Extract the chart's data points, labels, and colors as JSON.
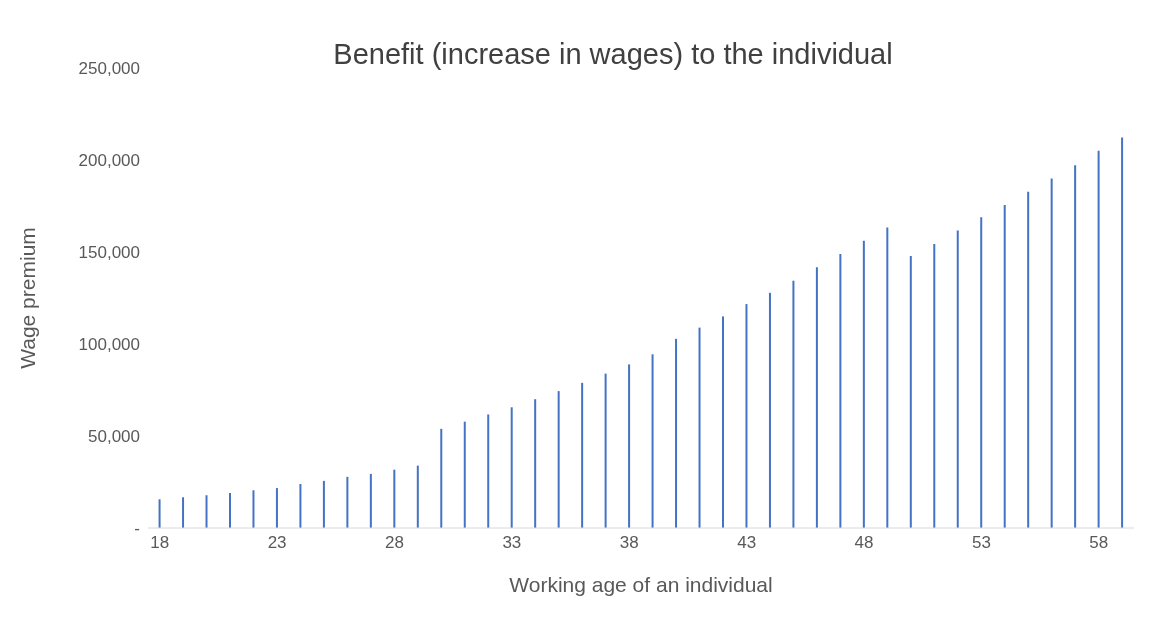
{
  "chart_data": {
    "type": "bar",
    "title": "Benefit (increase in wages) to the individual",
    "xlabel": "Working age of an individual",
    "ylabel": "Wage premium",
    "categories": [
      "18",
      null,
      null,
      null,
      null,
      "23",
      null,
      null,
      null,
      null,
      "28",
      null,
      null,
      null,
      null,
      "33",
      null,
      null,
      null,
      null,
      "38",
      null,
      null,
      null,
      null,
      "43",
      null,
      null,
      null,
      null,
      "48",
      null,
      null,
      null,
      null,
      "53",
      null,
      null,
      null,
      null,
      "58",
      null
    ],
    "values": [
      15600,
      16700,
      17800,
      19000,
      20500,
      21700,
      23900,
      25600,
      27800,
      29400,
      31700,
      33900,
      53900,
      57800,
      61700,
      65600,
      70000,
      74400,
      78900,
      83900,
      88900,
      94400,
      102800,
      108900,
      115000,
      121700,
      127800,
      134400,
      141700,
      148900,
      156100,
      163300,
      147800,
      154400,
      161700,
      168900,
      175600,
      182800,
      190000,
      197200,
      205000,
      212200
    ],
    "color": "#4472c4",
    "ylim": [
      0,
      250000
    ],
    "yticks": [
      {
        "value": 0,
        "label": "-"
      },
      {
        "value": 50000,
        "label": "50,000"
      },
      {
        "value": 100000,
        "label": "100,000"
      },
      {
        "value": 150000,
        "label": "150,000"
      },
      {
        "value": 200000,
        "label": "200,000"
      },
      {
        "value": 250000,
        "label": "250,000"
      }
    ],
    "grid": false,
    "legend": false
  }
}
